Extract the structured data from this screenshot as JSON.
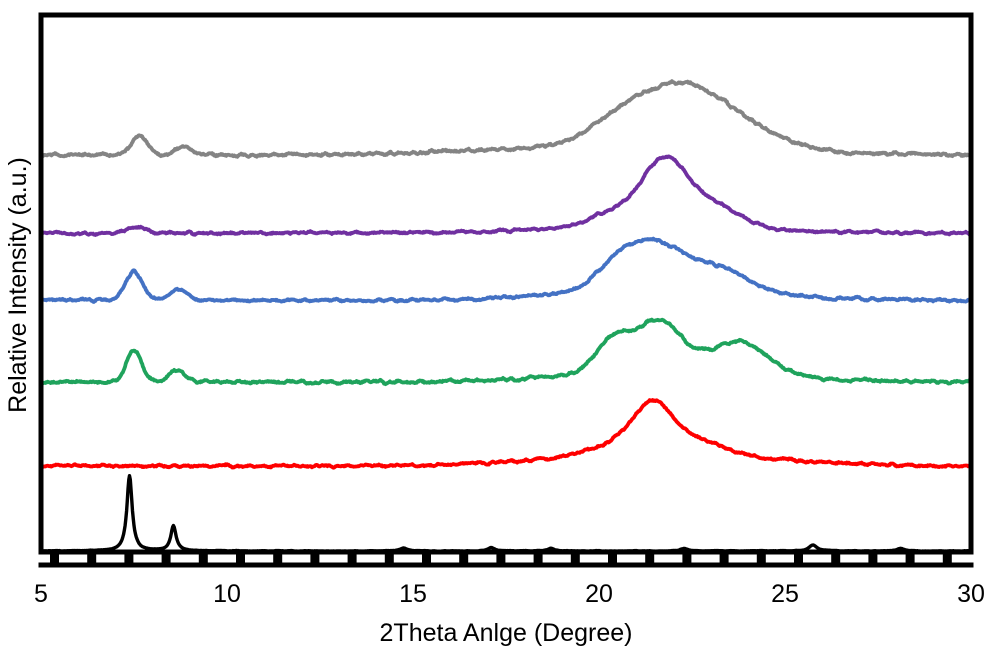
{
  "figure": {
    "background": "#ffffff",
    "frame_color": "#000000"
  },
  "chart_data": {
    "type": "line",
    "title": "",
    "xlabel": "2Theta Anlge (Degree)",
    "ylabel": "Relative Intensity (a.u.)",
    "xlim": [
      5,
      30
    ],
    "x_ticks": [
      5,
      10,
      15,
      20,
      25,
      30
    ],
    "x_minor_tick_step_deg": 1,
    "y_ticks": "none (arbitrary units)",
    "grid": false,
    "legend": "none",
    "description": "Six stacked XRD patterns (waterfall offset, top to bottom: gray, purple, blue, green, red, black reference). Offsets and peak heights are fractions of plot height; peak positions in 2-theta degrees.",
    "series": [
      {
        "name": "pattern-gray-top",
        "color": "#848484",
        "offset": 0.739,
        "noise": 0.0026,
        "peaks": [
          {
            "type": "gauss",
            "center": 7.65,
            "height": 0.035,
            "width": 0.22
          },
          {
            "type": "gauss",
            "center": 8.8,
            "height": 0.017,
            "width": 0.22
          },
          {
            "type": "gauss",
            "center": 20.2,
            "height": 0.022,
            "width": 0.7
          },
          {
            "type": "gauss",
            "center": 21.8,
            "height": 0.093,
            "width": 1.1
          },
          {
            "type": "gauss",
            "center": 23.4,
            "height": 0.052,
            "width": 1.2
          },
          {
            "type": "gauss",
            "center": 21.0,
            "height": 0.018,
            "width": 3.5
          }
        ]
      },
      {
        "name": "pattern-purple",
        "color": "#7030A0",
        "offset": 0.594,
        "noise": 0.002,
        "peaks": [
          {
            "type": "gauss",
            "center": 7.55,
            "height": 0.011,
            "width": 0.25
          },
          {
            "type": "gauss",
            "center": 20.4,
            "height": 0.026,
            "width": 0.6
          },
          {
            "type": "gauss",
            "center": 21.7,
            "height": 0.089,
            "width": 0.55
          },
          {
            "type": "gauss",
            "center": 22.3,
            "height": 0.047,
            "width": 0.8
          },
          {
            "type": "gauss",
            "center": 23.4,
            "height": 0.019,
            "width": 0.6
          },
          {
            "type": "gauss",
            "center": 21.5,
            "height": 0.015,
            "width": 2.5
          }
        ]
      },
      {
        "name": "pattern-blue",
        "color": "#4472C4",
        "offset": 0.469,
        "noise": 0.0022,
        "peaks": [
          {
            "type": "gauss",
            "center": 7.5,
            "height": 0.054,
            "width": 0.22
          },
          {
            "type": "gauss",
            "center": 8.7,
            "height": 0.02,
            "width": 0.22
          },
          {
            "type": "gauss",
            "center": 20.5,
            "height": 0.037,
            "width": 0.55
          },
          {
            "type": "gauss",
            "center": 21.55,
            "height": 0.074,
            "width": 0.75
          },
          {
            "type": "gauss",
            "center": 23.3,
            "height": 0.034,
            "width": 0.7
          },
          {
            "type": "gauss",
            "center": 21.8,
            "height": 0.03,
            "width": 2.2
          }
        ]
      },
      {
        "name": "pattern-green",
        "color": "#1FA35C",
        "offset": 0.317,
        "noise": 0.0024,
        "peaks": [
          {
            "type": "gauss",
            "center": 7.5,
            "height": 0.06,
            "width": 0.2
          },
          {
            "type": "gauss",
            "center": 8.65,
            "height": 0.022,
            "width": 0.2
          },
          {
            "type": "gauss",
            "center": 20.35,
            "height": 0.056,
            "width": 0.45
          },
          {
            "type": "gauss",
            "center": 21.6,
            "height": 0.089,
            "width": 0.6
          },
          {
            "type": "gauss",
            "center": 23.8,
            "height": 0.056,
            "width": 0.75
          },
          {
            "type": "gauss",
            "center": 21.9,
            "height": 0.026,
            "width": 2.3
          }
        ]
      },
      {
        "name": "pattern-red",
        "color": "#FE0000",
        "offset": 0.16,
        "noise": 0.002,
        "peaks": [
          {
            "type": "gauss",
            "center": 21.45,
            "height": 0.063,
            "width": 0.5
          },
          {
            "type": "gauss",
            "center": 21.4,
            "height": 0.037,
            "width": 1.2
          },
          {
            "type": "gauss",
            "center": 21.8,
            "height": 0.022,
            "width": 2.8
          },
          {
            "type": "gauss",
            "center": 22.9,
            "height": 0.009,
            "width": 0.5
          }
        ]
      },
      {
        "name": "pattern-black-reference",
        "color": "#000000",
        "offset": 0.002,
        "noise": 0.0004,
        "peaks": [
          {
            "type": "lorentz",
            "center": 7.38,
            "height": 0.14,
            "width": 0.085
          },
          {
            "type": "lorentz",
            "center": 8.56,
            "height": 0.047,
            "width": 0.085
          },
          {
            "type": "lorentz",
            "center": 14.75,
            "height": 0.006,
            "width": 0.1
          },
          {
            "type": "lorentz",
            "center": 17.1,
            "height": 0.006,
            "width": 0.1
          },
          {
            "type": "lorentz",
            "center": 18.7,
            "height": 0.005,
            "width": 0.1
          },
          {
            "type": "lorentz",
            "center": 22.3,
            "height": 0.005,
            "width": 0.1
          },
          {
            "type": "lorentz",
            "center": 25.75,
            "height": 0.011,
            "width": 0.12
          },
          {
            "type": "lorentz",
            "center": 28.1,
            "height": 0.005,
            "width": 0.1
          }
        ]
      }
    ]
  }
}
